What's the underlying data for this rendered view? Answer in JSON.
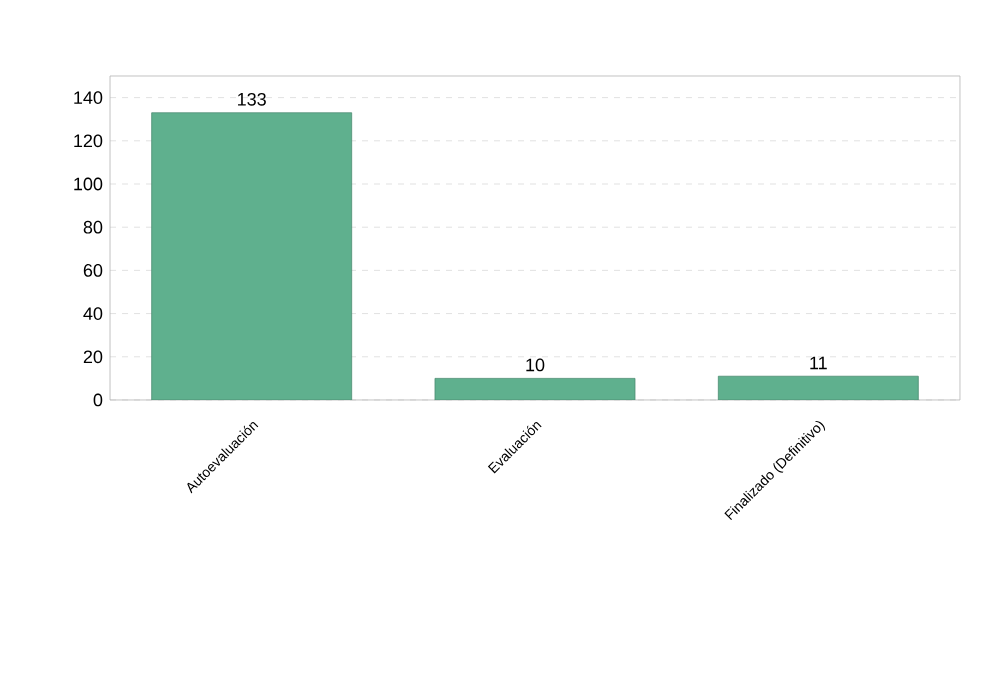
{
  "chart_data": {
    "type": "bar",
    "categories": [
      "Autoevaluación",
      "Evaluación",
      "Finalizado (Definitivo)"
    ],
    "values": [
      133,
      10,
      11
    ],
    "color": "#5fb08e",
    "ylim": [
      0,
      150
    ],
    "yticks": [
      0,
      20,
      40,
      60,
      80,
      100,
      120,
      140
    ],
    "grid": "y",
    "data_labels": true
  }
}
